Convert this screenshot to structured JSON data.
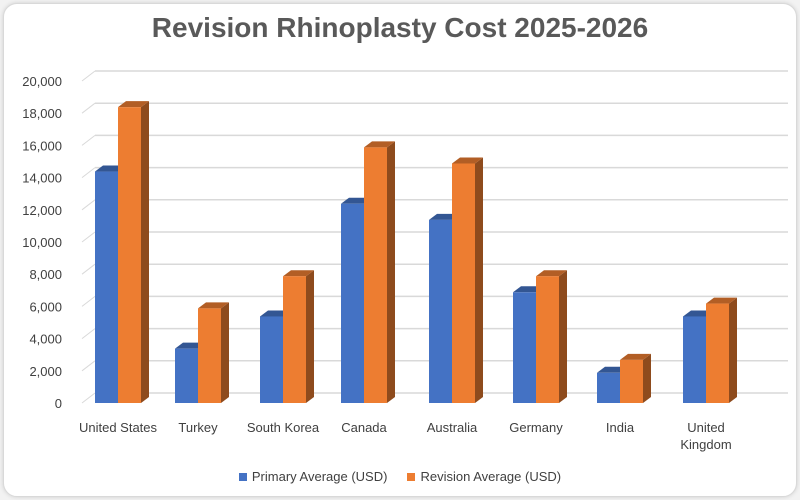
{
  "chart_data": {
    "type": "bar",
    "title": "Revision Rhinoplasty Cost 2025-2026",
    "categories": [
      "United States",
      "Turkey",
      "South Korea",
      "Canada",
      "Australia",
      "Germany",
      "India",
      "United Kingdom"
    ],
    "series": [
      {
        "name": "Primary Average (USD)",
        "color": "#4472c4",
        "values": [
          14500,
          3500,
          5500,
          12500,
          11500,
          7000,
          2000,
          5500
        ]
      },
      {
        "name": "Revision Average (USD)",
        "color": "#ed7d31",
        "values": [
          18500,
          6000,
          8000,
          16000,
          15000,
          8000,
          2800,
          6300
        ]
      }
    ],
    "yticks": [
      "0",
      "2,000",
      "4,000",
      "6,000",
      "8,000",
      "10,000",
      "12,000",
      "14,000",
      "16,000",
      "18,000",
      "20,000"
    ],
    "ylim": [
      0,
      20000
    ],
    "grid": true,
    "legend": "bottom",
    "style": "3d-clustered-column"
  }
}
